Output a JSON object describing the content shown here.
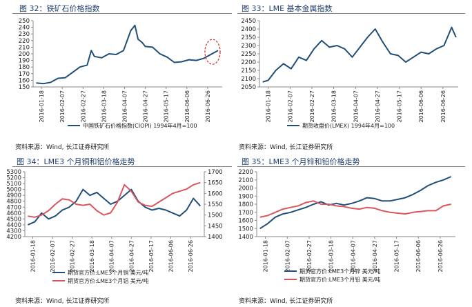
{
  "figures": [
    {
      "title": "图 32：铁矿石价格指数",
      "source": "资料来源：Wind, 长江证券研究所"
    },
    {
      "title": "图 33：LME 基本金属指数",
      "source": "资料来源：Wind, 长江证券研究所"
    },
    {
      "title": "图 34：LME3 个月铜和铝价格走势",
      "source": "资料来源：Wind, 长江证券研究所"
    },
    {
      "title": "图 35：LME3 个月锌和铅价格走势",
      "source": "资料来源：Wind, 长江证券研究所"
    }
  ],
  "chart_data": [
    {
      "type": "line",
      "ylim": [
        150,
        250
      ],
      "yticks": [
        "150",
        "160",
        "170",
        "180",
        "190",
        "200",
        "210",
        "220",
        "230",
        "240",
        "250"
      ],
      "xticks": [
        "2016-01-18",
        "2016-02-07",
        "2016-02-27",
        "2016-03-18",
        "2016-04-07",
        "2016-04-27",
        "2016-05-17",
        "2016-06-06",
        "2016-06-26"
      ],
      "x": [
        "2016-01-13",
        "2016-01-20",
        "2016-01-27",
        "2016-02-03",
        "2016-02-10",
        "2016-02-17",
        "2016-02-24",
        "2016-03-02",
        "2016-03-06",
        "2016-03-09",
        "2016-03-16",
        "2016-03-23",
        "2016-03-30",
        "2016-04-06",
        "2016-04-13",
        "2016-04-17",
        "2016-04-20",
        "2016-04-24",
        "2016-04-27",
        "2016-05-04",
        "2016-05-11",
        "2016-05-18",
        "2016-05-25",
        "2016-06-01",
        "2016-06-08",
        "2016-06-15",
        "2016-06-22",
        "2016-06-29",
        "2016-07-06"
      ],
      "series": [
        {
          "name": "中国铁矿石价格指数(CIOPI) 1994年4月=100",
          "color": "#1f4e79",
          "values": [
            156,
            155,
            157,
            163,
            164,
            172,
            180,
            183,
            205,
            196,
            194,
            200,
            199,
            205,
            235,
            243,
            222,
            217,
            211,
            210,
            200,
            195,
            187,
            188,
            191,
            190,
            193,
            199,
            205
          ]
        }
      ],
      "annotation": "dashed-red-ellipse"
    },
    {
      "type": "line",
      "ylim": [
        2050,
        2450
      ],
      "yticks": [
        "2050",
        "2100",
        "2150",
        "2200",
        "2250",
        "2300",
        "2350",
        "2400",
        "2450"
      ],
      "xticks": [
        "2016-01-18",
        "2016-02-07",
        "2016-02-27",
        "2016-03-18",
        "2016-04-07",
        "2016-04-27",
        "2016-05-17",
        "2016-06-06",
        "2016-06-26"
      ],
      "x": [
        "2016-01-13",
        "2016-01-18",
        "2016-01-25",
        "2016-02-01",
        "2016-02-08",
        "2016-02-15",
        "2016-02-22",
        "2016-02-29",
        "2016-03-07",
        "2016-03-14",
        "2016-03-21",
        "2016-03-28",
        "2016-04-04",
        "2016-04-11",
        "2016-04-18",
        "2016-04-25",
        "2016-05-02",
        "2016-05-09",
        "2016-05-16",
        "2016-05-23",
        "2016-05-30",
        "2016-06-06",
        "2016-06-13",
        "2016-06-20",
        "2016-06-27",
        "2016-07-04",
        "2016-07-08"
      ],
      "series": [
        {
          "name": "期货收盘价(LMEX) 1994年4月=100",
          "color": "#1f4e79",
          "values": [
            2080,
            2090,
            2150,
            2190,
            2160,
            2230,
            2210,
            2280,
            2330,
            2290,
            2300,
            2280,
            2230,
            2290,
            2350,
            2400,
            2320,
            2250,
            2240,
            2200,
            2230,
            2260,
            2250,
            2280,
            2300,
            2410,
            2350
          ]
        }
      ]
    },
    {
      "type": "line",
      "ylim": [
        4200,
        5300
      ],
      "ylim_right": [
        1400,
        1700
      ],
      "yticks": [
        "4200",
        "4300",
        "4400",
        "4500",
        "4600",
        "4700",
        "4800",
        "4900",
        "5000",
        "5100",
        "5200",
        "5300"
      ],
      "yticks_right": [
        "1400",
        "1450",
        "1500",
        "1550",
        "1600",
        "1650",
        "1700"
      ],
      "xticks": [
        "2016-01-18",
        "2016-02-07",
        "2016-02-27",
        "2016-03-18",
        "2016-04-07",
        "2016-04-27",
        "2016-05-17",
        "2016-06-06",
        "2016-06-26"
      ],
      "x": [
        "2016-01-13",
        "2016-01-20",
        "2016-01-27",
        "2016-02-03",
        "2016-02-10",
        "2016-02-17",
        "2016-02-24",
        "2016-03-02",
        "2016-03-09",
        "2016-03-16",
        "2016-03-23",
        "2016-03-30",
        "2016-04-06",
        "2016-04-13",
        "2016-04-20",
        "2016-04-27",
        "2016-05-04",
        "2016-05-11",
        "2016-05-18",
        "2016-05-25",
        "2016-06-01",
        "2016-06-08",
        "2016-06-15",
        "2016-06-22",
        "2016-06-29",
        "2016-07-06"
      ],
      "series": [
        {
          "name": "期货官方价:LME3个月铜 美元/吨",
          "color": "#1f4e79",
          "axis": "left",
          "values": [
            4400,
            4450,
            4600,
            4500,
            4550,
            4650,
            4700,
            4800,
            5000,
            4900,
            4950,
            4850,
            4750,
            4800,
            4900,
            5000,
            4800,
            4700,
            4650,
            4680,
            4650,
            4600,
            4550,
            4650,
            4850,
            4720
          ]
        },
        {
          "name": "期货官方价:LME3个月铝 美元/吨",
          "color": "#d9565f",
          "axis": "right",
          "values": [
            1495,
            1490,
            1500,
            1520,
            1550,
            1575,
            1570,
            1550,
            1545,
            1550,
            1520,
            1500,
            1510,
            1560,
            1640,
            1610,
            1560,
            1545,
            1540,
            1560,
            1580,
            1600,
            1610,
            1620,
            1640,
            1650
          ]
        }
      ]
    },
    {
      "type": "line",
      "ylim": [
        1400,
        2200
      ],
      "yticks": [
        "1400",
        "1500",
        "1600",
        "1700",
        "1800",
        "1900",
        "2000",
        "2100",
        "2200"
      ],
      "xticks": [
        "2016-01-18",
        "2016-02-07",
        "2016-02-27",
        "2016-03-18",
        "2016-04-07",
        "2016-04-27",
        "2016-05-17",
        "2016-06-06",
        "2016-06-26"
      ],
      "x": [
        "2016-01-13",
        "2016-01-20",
        "2016-01-27",
        "2016-02-03",
        "2016-02-10",
        "2016-02-17",
        "2016-02-24",
        "2016-03-02",
        "2016-03-09",
        "2016-03-16",
        "2016-03-23",
        "2016-03-30",
        "2016-04-06",
        "2016-04-13",
        "2016-04-20",
        "2016-04-27",
        "2016-05-04",
        "2016-05-11",
        "2016-05-18",
        "2016-05-25",
        "2016-06-01",
        "2016-06-08",
        "2016-06-15",
        "2016-06-22",
        "2016-06-29",
        "2016-07-06"
      ],
      "series": [
        {
          "name": "期货官方价:LME3个月锌 美元/吨",
          "color": "#1f4e79",
          "values": [
            1500,
            1560,
            1640,
            1680,
            1700,
            1730,
            1760,
            1800,
            1830,
            1790,
            1810,
            1790,
            1810,
            1840,
            1880,
            1870,
            1840,
            1840,
            1860,
            1880,
            1920,
            1970,
            2030,
            2070,
            2100,
            2140
          ]
        },
        {
          "name": "期货官方价:LME3个月铅 美元/吨",
          "color": "#d9565f",
          "values": [
            1640,
            1660,
            1700,
            1740,
            1760,
            1780,
            1820,
            1840,
            1800,
            1800,
            1780,
            1770,
            1750,
            1740,
            1760,
            1750,
            1720,
            1700,
            1690,
            1680,
            1700,
            1710,
            1720,
            1720,
            1780,
            1800
          ]
        }
      ]
    }
  ]
}
